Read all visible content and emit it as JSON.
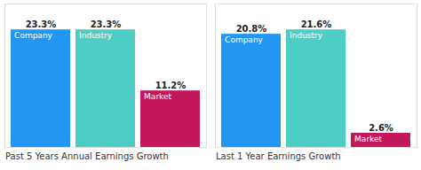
{
  "chart_data": [
    {
      "type": "bar",
      "title": "Past 5 Years Annual Earnings Growth",
      "categories": [
        "Company",
        "Industry",
        "Market"
      ],
      "values": [
        23.3,
        23.3,
        11.2
      ],
      "value_labels": [
        "23.3%",
        "23.3%",
        "11.2%"
      ],
      "colors": [
        "#2196f3",
        "#4ecdc4",
        "#c2185b"
      ],
      "ylim": [
        0,
        28.426
      ],
      "data_labels": true,
      "tick_labels": false
    },
    {
      "type": "bar",
      "title": "Last 1 Year Earnings Growth",
      "categories": [
        "Company",
        "Industry",
        "Market"
      ],
      "values": [
        20.8,
        21.6,
        2.6
      ],
      "value_labels": [
        "20.8%",
        "21.6%",
        "2.6%"
      ],
      "colors": [
        "#2196f3",
        "#4ecdc4",
        "#c2185b"
      ],
      "ylim": [
        0,
        26.352
      ],
      "data_labels": true,
      "tick_labels": false
    }
  ]
}
